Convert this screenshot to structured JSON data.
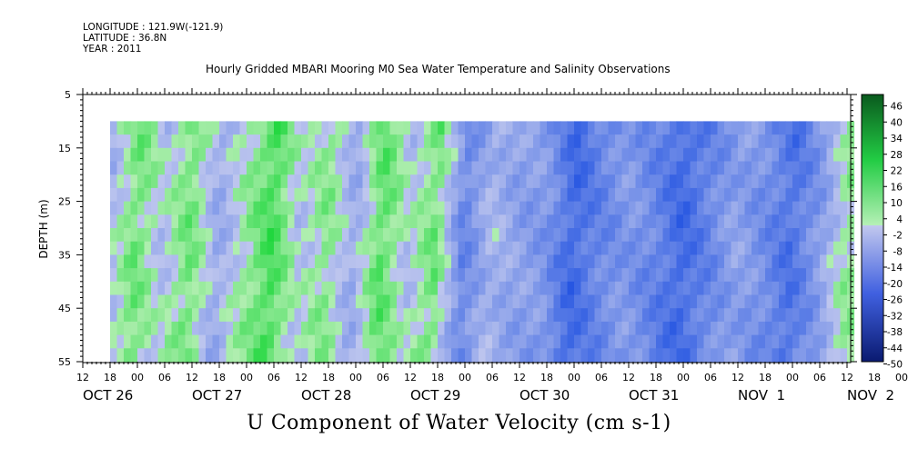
{
  "meta": {
    "longitude": "LONGITUDE : 121.9W(-121.9)",
    "latitude": "LATITUDE : 36.8N",
    "year": "YEAR : 2011"
  },
  "chart_data": {
    "type": "heatmap",
    "title": "Hourly Gridded MBARI Mooring M0 Sea Water Temperature and Salinity Observations",
    "bottom_title": "U Component of Water Velocity (cm s-1)",
    "ylabel": "DEPTH (m)",
    "ylim": [
      5,
      55
    ],
    "y_inverted": true,
    "y_ticks": [
      5,
      15,
      25,
      35,
      45,
      55
    ],
    "hour_tick_labels": [
      "12",
      "18",
      "00",
      "06",
      "12",
      "18",
      "00",
      "06",
      "12",
      "18",
      "00",
      "06",
      "12",
      "18",
      "00",
      "06",
      "12",
      "18",
      "00",
      "06",
      "12",
      "18",
      "00",
      "06",
      "12",
      "18",
      "00",
      "06",
      "12",
      "18",
      "00",
      "06",
      "12"
    ],
    "date_labels": [
      "OCT 26",
      "OCT 27",
      "OCT 28",
      "OCT 29",
      "OCT 30",
      "OCT 31",
      "NOV  1",
      "NOV  2"
    ],
    "data_depth_range": [
      10,
      55
    ],
    "colorbar": {
      "labels": [
        "46",
        "40",
        "34",
        "28",
        "22",
        "16",
        "10",
        "4",
        "-2",
        "-8",
        "-14",
        "-20",
        "-26",
        "-32",
        "-38",
        "-44",
        "-50"
      ],
      "min": -50,
      "max": 50,
      "positive_color": "#0ba83a",
      "negative_color": "#1030c0"
    },
    "u_profile": [
      {
        "t": "Oct 26 18:00",
        "u": -4
      },
      {
        "t": "Oct 27 00:00",
        "u": 6
      },
      {
        "t": "Oct 27 06:00",
        "u": -2
      },
      {
        "t": "Oct 27 12:00",
        "u": 6
      },
      {
        "t": "Oct 27 18:00",
        "u": -6
      },
      {
        "t": "Oct 28 00:00",
        "u": 2
      },
      {
        "t": "Oct 28 06:00",
        "u": 10
      },
      {
        "t": "Oct 28 12:00",
        "u": -2
      },
      {
        "t": "Oct 28 18:00",
        "u": 4
      },
      {
        "t": "Oct 29 00:00",
        "u": -6
      },
      {
        "t": "Oct 29 06:00",
        "u": 8
      },
      {
        "t": "Oct 29 12:00",
        "u": -2
      },
      {
        "t": "Oct 29 18:00",
        "u": 6
      },
      {
        "t": "Oct 30 00:00",
        "u": -14
      },
      {
        "t": "Oct 30 06:00",
        "u": -4
      },
      {
        "t": "Oct 30 12:00",
        "u": -8
      },
      {
        "t": "Oct 30 18:00",
        "u": -10
      },
      {
        "t": "Oct 31 00:00",
        "u": -20
      },
      {
        "t": "Oct 31 06:00",
        "u": -14
      },
      {
        "t": "Oct 31 12:00",
        "u": -10
      },
      {
        "t": "Oct 31 18:00",
        "u": -14
      },
      {
        "t": "Nov 1 00:00",
        "u": -20
      },
      {
        "t": "Nov 1 06:00",
        "u": -14
      },
      {
        "t": "Nov 1 12:00",
        "u": -8
      },
      {
        "t": "Nov 1 18:00",
        "u": -12
      },
      {
        "t": "Nov 2 00:00",
        "u": -18
      },
      {
        "t": "Nov 2 06:00",
        "u": -10
      },
      {
        "t": "Nov 2 12:00",
        "u": 2
      }
    ]
  }
}
